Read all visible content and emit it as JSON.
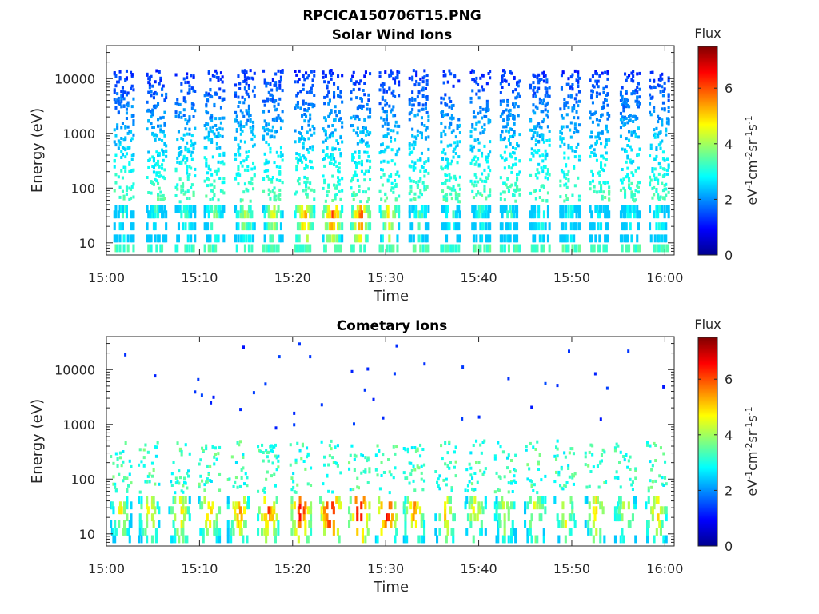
{
  "figure": {
    "file_title": "RPCICA150706T15.PNG"
  },
  "chart_data": [
    {
      "type": "heatmap",
      "title": "Solar Wind Ions",
      "xlabel": "Time",
      "ylabel": "Energy (eV)",
      "x_ticks": [
        "15:00",
        "15:10",
        "15:20",
        "15:30",
        "15:40",
        "15:50",
        "16:00"
      ],
      "xlim": [
        0,
        61
      ],
      "y_scale": "log",
      "y_ticks": [
        "10",
        "100",
        "1000",
        "10000"
      ],
      "ylim": [
        6,
        40000
      ],
      "colorbar": {
        "title": "Flux",
        "label": "eV-1cm-2sr-1s-1",
        "ticks": [
          "0",
          "2",
          "4",
          "6"
        ],
        "range": [
          0,
          7.5
        ],
        "colormap": "jet"
      },
      "sweep_centers_min": [
        1.8,
        5.3,
        8.4,
        11.5,
        14.8,
        17.8,
        21.2,
        24.2,
        27.2,
        30.3,
        33.5,
        36.9,
        40.1,
        43.3,
        46.5,
        49.7,
        52.9,
        56.2,
        59.3
      ],
      "peak_flux_by_sweep": [
        3.3,
        3.4,
        3.6,
        4.0,
        4.3,
        4.7,
        5.6,
        6.0,
        5.9,
        5.2,
        3.6,
        3.4,
        3.3,
        3.3,
        3.3,
        3.2,
        3.1,
        3.1,
        3.2
      ],
      "peak_energy_ev": 30,
      "grid": false
    },
    {
      "type": "heatmap",
      "title": "Cometary Ions",
      "xlabel": "Time",
      "ylabel": "Energy (eV)",
      "x_ticks": [
        "15:00",
        "15:10",
        "15:20",
        "15:30",
        "15:40",
        "15:50",
        "16:00"
      ],
      "xlim": [
        0,
        61
      ],
      "y_scale": "log",
      "y_ticks": [
        "10",
        "100",
        "1000",
        "10000"
      ],
      "ylim": [
        6,
        40000
      ],
      "colorbar": {
        "title": "Flux",
        "label": "eV-1cm-2sr-1s-1",
        "ticks": [
          "0",
          "2",
          "4",
          "6"
        ],
        "range": [
          0,
          7.5
        ],
        "colormap": "jet"
      },
      "sweep_centers_min": [
        1.5,
        4.5,
        7.8,
        11.0,
        14.1,
        17.3,
        20.8,
        24.0,
        27.1,
        30.0,
        33.0,
        36.4,
        39.6,
        42.8,
        46.0,
        49.2,
        52.5,
        55.7,
        59.0
      ],
      "peak_flux_by_sweep": [
        4.8,
        5.2,
        5.4,
        5.7,
        5.8,
        6.2,
        6.9,
        7.3,
        7.2,
        6.8,
        5.8,
        5.3,
        5.0,
        4.8,
        4.9,
        5.0,
        5.2,
        4.9,
        5.3
      ],
      "peak_energy_ev": 25,
      "grid": false
    }
  ]
}
